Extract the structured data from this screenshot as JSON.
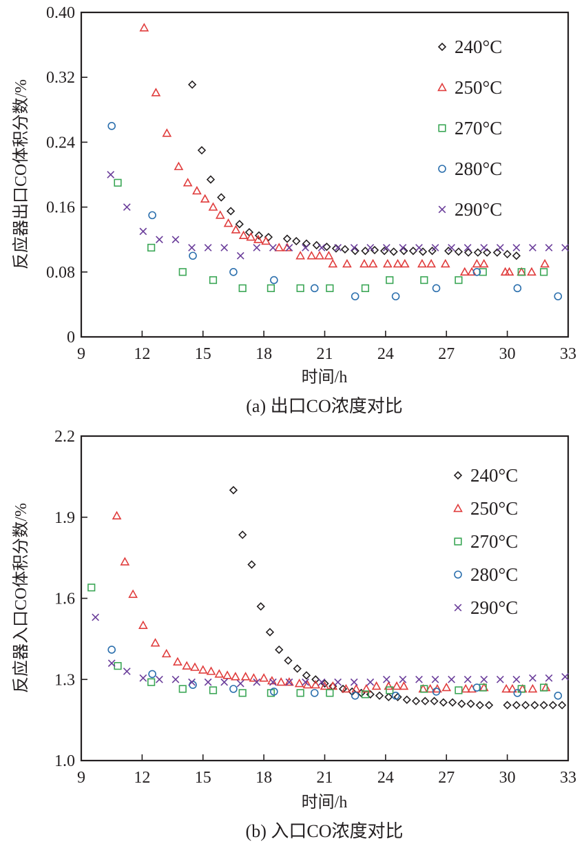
{
  "chart_data": [
    {
      "id": "a",
      "type": "scatter",
      "title": "",
      "caption": "(a) 出口CO浓度对比",
      "xlabel": "时间/h",
      "ylabel": "反应器出口CO体积分数/%",
      "xlim": [
        9,
        33
      ],
      "ylim": [
        0,
        0.4
      ],
      "xticks": [
        9,
        12,
        15,
        18,
        21,
        24,
        27,
        30,
        33
      ],
      "xtick_labels": [
        "9",
        "12",
        "15",
        "18",
        "21",
        "24",
        "27",
        "30",
        "33"
      ],
      "yticks": [
        0,
        0.08,
        0.16,
        0.24,
        0.32,
        0.4
      ],
      "ytick_labels": [
        "0",
        "0.08",
        "0.16",
        "0.24",
        "0.32",
        "0.40"
      ],
      "grid": false,
      "legend_position": "top-right",
      "series": [
        {
          "name": "240°C",
          "marker": "diamond",
          "color": "#231f20",
          "x": [
            14.47,
            14.94,
            15.38,
            15.9,
            16.37,
            16.8,
            17.28,
            17.76,
            18.23,
            19.15,
            19.6,
            20.1,
            20.6,
            21.1,
            21.56,
            22.0,
            22.5,
            23.0,
            23.46,
            23.94,
            24.4,
            24.9,
            25.36,
            25.84,
            26.3,
            27.1,
            27.6,
            28.08,
            28.55,
            29.0,
            29.5,
            30.0,
            30.45
          ],
          "y": [
            0.311,
            0.23,
            0.194,
            0.172,
            0.155,
            0.139,
            0.129,
            0.125,
            0.123,
            0.121,
            0.118,
            0.115,
            0.113,
            0.111,
            0.109,
            0.108,
            0.106,
            0.106,
            0.107,
            0.106,
            0.105,
            0.106,
            0.106,
            0.105,
            0.106,
            0.106,
            0.105,
            0.104,
            0.104,
            0.104,
            0.104,
            0.102,
            0.1
          ]
        },
        {
          "name": "250°C",
          "marker": "triangle",
          "color": "#e03c3c",
          "x": [
            12.1,
            12.68,
            13.22,
            13.8,
            14.25,
            14.7,
            15.1,
            15.5,
            15.85,
            16.25,
            16.62,
            17.0,
            17.36,
            17.72,
            18.1,
            18.75,
            19.15,
            19.8,
            20.35,
            20.75,
            21.2,
            21.4,
            22.1,
            22.95,
            23.38,
            24.1,
            24.6,
            24.95,
            25.8,
            26.25,
            26.95,
            27.9,
            28.25,
            28.5,
            28.85,
            29.9,
            30.1,
            30.7,
            31.2,
            31.85
          ],
          "y": [
            0.381,
            0.301,
            0.251,
            0.21,
            0.19,
            0.18,
            0.17,
            0.16,
            0.15,
            0.14,
            0.132,
            0.125,
            0.123,
            0.12,
            0.118,
            0.11,
            0.11,
            0.1,
            0.1,
            0.1,
            0.1,
            0.09,
            0.09,
            0.09,
            0.09,
            0.09,
            0.09,
            0.09,
            0.09,
            0.09,
            0.09,
            0.08,
            0.08,
            0.09,
            0.09,
            0.08,
            0.08,
            0.08,
            0.08,
            0.09
          ]
        },
        {
          "name": "270°C",
          "marker": "square",
          "color": "#3aa655",
          "x": [
            10.8,
            12.45,
            14.0,
            15.5,
            16.95,
            18.35,
            19.8,
            21.25,
            23.0,
            24.2,
            25.9,
            27.6,
            28.8,
            30.7,
            31.8
          ],
          "y": [
            0.19,
            0.11,
            0.08,
            0.07,
            0.06,
            0.06,
            0.06,
            0.06,
            0.06,
            0.07,
            0.07,
            0.07,
            0.08,
            0.08,
            0.08
          ],
          "note": ""
        },
        {
          "name": "280°C",
          "marker": "circle",
          "color": "#2b6fad",
          "x": [
            10.5,
            12.5,
            14.5,
            16.5,
            18.5,
            20.5,
            22.5,
            24.5,
            26.5,
            28.5,
            30.5,
            32.5
          ],
          "y": [
            0.26,
            0.15,
            0.1,
            0.08,
            0.07,
            0.06,
            0.05,
            0.05,
            0.06,
            0.08,
            0.06,
            0.05
          ]
        },
        {
          "name": "290°C",
          "marker": "cross",
          "color": "#6a3d9a",
          "x": [
            10.45,
            11.25,
            12.05,
            12.85,
            13.65,
            14.45,
            15.25,
            16.05,
            16.85,
            17.65,
            18.45,
            19.25,
            20.05,
            20.85,
            21.65,
            22.45,
            23.25,
            24.05,
            24.85,
            25.65,
            26.45,
            27.25,
            28.05,
            28.85,
            29.65,
            30.45,
            31.25,
            32.05,
            32.85
          ],
          "y": [
            0.2,
            0.16,
            0.13,
            0.12,
            0.12,
            0.11,
            0.11,
            0.11,
            0.1,
            0.11,
            0.11,
            0.11,
            0.11,
            0.11,
            0.11,
            0.11,
            0.11,
            0.11,
            0.11,
            0.11,
            0.11,
            0.11,
            0.11,
            0.11,
            0.11,
            0.11,
            0.11,
            0.11,
            0.11
          ]
        }
      ]
    },
    {
      "id": "b",
      "type": "scatter",
      "title": "",
      "caption": "(b) 入口CO浓度对比",
      "xlabel": "时间/h",
      "ylabel": "反应器入口CO体积分数/%",
      "xlim": [
        9,
        33
      ],
      "ylim": [
        1.0,
        2.2
      ],
      "xticks": [
        9,
        12,
        15,
        18,
        21,
        24,
        27,
        30,
        33
      ],
      "xtick_labels": [
        "9",
        "12",
        "15",
        "18",
        "21",
        "24",
        "27",
        "30",
        "33"
      ],
      "yticks": [
        1.0,
        1.3,
        1.6,
        1.9,
        2.2
      ],
      "ytick_labels": [
        "1.0",
        "1.3",
        "1.6",
        "1.9",
        "2.2"
      ],
      "grid": false,
      "legend_position": "top-right",
      "series": [
        {
          "name": "240°C",
          "marker": "diamond",
          "color": "#231f20",
          "x": [
            16.5,
            16.95,
            17.4,
            17.85,
            18.3,
            18.75,
            19.2,
            19.65,
            20.1,
            20.55,
            21.0,
            21.4,
            21.9,
            22.35,
            22.8,
            23.25,
            23.7,
            24.15,
            24.6,
            25.05,
            25.5,
            25.95,
            26.4,
            26.85,
            27.3,
            27.75,
            28.2,
            28.65,
            29.1,
            30.0,
            30.45,
            30.9,
            31.35,
            31.8,
            32.25,
            32.7
          ],
          "y": [
            2.0,
            1.835,
            1.725,
            1.57,
            1.475,
            1.41,
            1.37,
            1.34,
            1.315,
            1.3,
            1.285,
            1.275,
            1.265,
            1.255,
            1.25,
            1.245,
            1.24,
            1.235,
            1.235,
            1.225,
            1.22,
            1.22,
            1.22,
            1.215,
            1.215,
            1.21,
            1.21,
            1.205,
            1.205,
            1.205,
            1.205,
            1.205,
            1.205,
            1.205,
            1.205,
            1.205
          ]
        },
        {
          "name": "250°C",
          "marker": "triangle",
          "color": "#e03c3c",
          "x": [
            10.75,
            11.15,
            11.55,
            12.05,
            12.65,
            13.2,
            13.75,
            14.2,
            14.6,
            15.0,
            15.4,
            15.8,
            16.2,
            16.6,
            17.1,
            17.5,
            18.0,
            18.4,
            18.85,
            19.25,
            19.75,
            20.15,
            20.55,
            21.0,
            21.4,
            22.05,
            22.55,
            23.05,
            23.55,
            24.15,
            24.55,
            24.9,
            25.85,
            26.2,
            26.55,
            27.0,
            27.95,
            28.25,
            28.85,
            29.95,
            30.25,
            30.75,
            31.25,
            31.9
          ],
          "y": [
            1.905,
            1.735,
            1.615,
            1.5,
            1.435,
            1.395,
            1.365,
            1.35,
            1.345,
            1.335,
            1.33,
            1.32,
            1.315,
            1.31,
            1.31,
            1.305,
            1.305,
            1.295,
            1.29,
            1.29,
            1.285,
            1.28,
            1.28,
            1.275,
            1.275,
            1.265,
            1.265,
            1.265,
            1.275,
            1.275,
            1.275,
            1.275,
            1.265,
            1.265,
            1.265,
            1.27,
            1.265,
            1.265,
            1.27,
            1.265,
            1.265,
            1.265,
            1.265,
            1.27
          ]
        },
        {
          "name": "270°C",
          "marker": "square",
          "color": "#3aa655",
          "x": [
            9.5,
            10.8,
            12.45,
            14.0,
            15.5,
            16.95,
            18.35,
            19.8,
            21.25,
            23.0,
            24.2,
            25.9,
            27.6,
            28.8,
            30.7,
            31.8
          ],
          "y": [
            1.64,
            1.35,
            1.29,
            1.265,
            1.26,
            1.25,
            1.25,
            1.25,
            1.25,
            1.245,
            1.26,
            1.265,
            1.26,
            1.27,
            1.265,
            1.27
          ]
        },
        {
          "name": "280°C",
          "marker": "circle",
          "color": "#2b6fad",
          "x": [
            10.5,
            12.5,
            14.5,
            16.5,
            18.5,
            20.5,
            22.5,
            24.5,
            26.5,
            28.5,
            30.5,
            32.5
          ],
          "y": [
            1.41,
            1.32,
            1.28,
            1.265,
            1.255,
            1.25,
            1.24,
            1.24,
            1.255,
            1.27,
            1.25,
            1.24
          ]
        },
        {
          "name": "290°C",
          "marker": "cross",
          "color": "#6a3d9a",
          "x": [
            9.7,
            10.5,
            11.25,
            12.05,
            12.85,
            13.65,
            14.45,
            15.25,
            16.05,
            16.85,
            17.65,
            18.45,
            19.25,
            20.05,
            20.85,
            21.65,
            22.45,
            23.25,
            24.05,
            24.85,
            25.65,
            26.45,
            27.25,
            28.05,
            28.85,
            29.65,
            30.45,
            31.25,
            32.05,
            32.85
          ],
          "y": [
            1.53,
            1.36,
            1.33,
            1.305,
            1.3,
            1.3,
            1.29,
            1.29,
            1.29,
            1.285,
            1.29,
            1.29,
            1.29,
            1.29,
            1.29,
            1.29,
            1.29,
            1.29,
            1.3,
            1.3,
            1.3,
            1.3,
            1.3,
            1.3,
            1.3,
            1.3,
            1.3,
            1.305,
            1.305,
            1.31
          ]
        }
      ]
    }
  ]
}
